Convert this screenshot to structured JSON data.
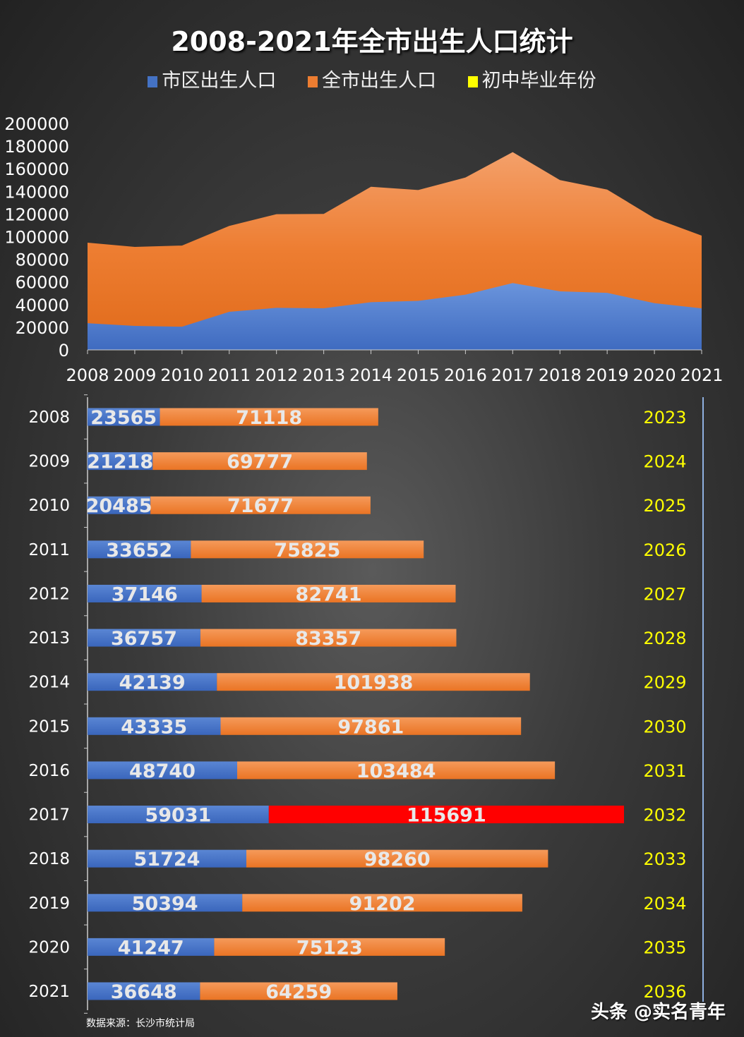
{
  "chart_data": {
    "type": "area+stacked-bar",
    "title": "2008-2021年全市出生人口统计",
    "legend": [
      {
        "name": "市区出生人口",
        "color": "#4472c4"
      },
      {
        "name": "全市出生人口",
        "color": "#ed7d31"
      },
      {
        "name": "初中毕业年份",
        "color": "#ffff00"
      }
    ],
    "categories": [
      "2008",
      "2009",
      "2010",
      "2011",
      "2012",
      "2013",
      "2014",
      "2015",
      "2016",
      "2017",
      "2018",
      "2019",
      "2020",
      "2021"
    ],
    "series": [
      {
        "name": "市区出生人口",
        "values": [
          23565,
          21218,
          20485,
          33652,
          37146,
          36757,
          42139,
          43335,
          48740,
          59031,
          51724,
          50394,
          41247,
          36648
        ]
      },
      {
        "name": "全市出生人口",
        "values": [
          71118,
          69777,
          71677,
          75825,
          82741,
          83357,
          101938,
          97861,
          103484,
          115691,
          98260,
          91202,
          75123,
          64259
        ]
      }
    ],
    "graduation_years": [
      "2023",
      "2024",
      "2025",
      "2026",
      "2027",
      "2028",
      "2029",
      "2030",
      "2031",
      "2032",
      "2033",
      "2034",
      "2035",
      "2036"
    ],
    "highlight": {
      "category": "2017",
      "color": "#ff0000"
    },
    "area_y_ticks": [
      "0",
      "20000",
      "40000",
      "60000",
      "80000",
      "100000",
      "120000",
      "140000",
      "160000",
      "180000",
      "200000"
    ],
    "area_ylim": [
      0,
      200000
    ]
  },
  "footer": {
    "source": "数据来源：长沙市统计局",
    "watermark": "头条 @实名青年"
  }
}
